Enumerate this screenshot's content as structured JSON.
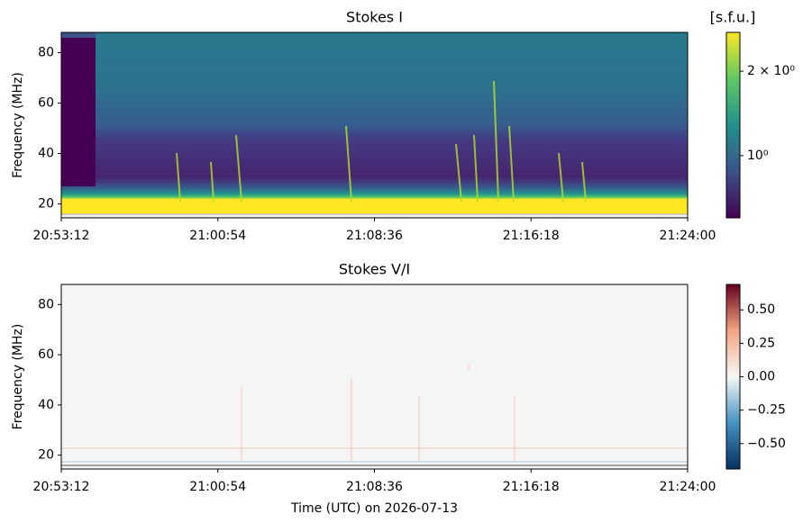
{
  "chart_data": [
    {
      "type": "heatmap",
      "title": "Stokes I",
      "ylabel": "Frequency (MHz)",
      "xlim": [
        "20:53:12",
        "21:24:00"
      ],
      "xticks": [
        "20:53:12",
        "21:00:54",
        "21:08:36",
        "21:16:18",
        "21:24:00"
      ],
      "ylim": [
        14.5,
        88
      ],
      "yticks": [
        20,
        40,
        60,
        80
      ],
      "colorbar": {
        "label": "[s.f.u.]",
        "scale": "log",
        "lim": [
          0.6,
          2.75
        ],
        "ticks": [
          {
            "value": 1,
            "label": "10⁰"
          },
          {
            "value": 2,
            "label": "2 × 10⁰"
          }
        ],
        "colormap": [
          "#440154",
          "#3b528b",
          "#21918c",
          "#5ec962",
          "#fde725"
        ]
      }
    },
    {
      "type": "heatmap",
      "title": "Stokes V/I",
      "ylabel": "Frequency (MHz)",
      "xlabel": "Time (UTC) on 2026-07-13",
      "xlim": [
        "20:53:12",
        "21:24:00"
      ],
      "xticks": [
        "20:53:12",
        "21:00:54",
        "21:08:36",
        "21:16:18",
        "21:24:00"
      ],
      "ylim": [
        14.5,
        88
      ],
      "yticks": [
        20,
        40,
        60,
        80
      ],
      "colorbar": {
        "scale": "linear",
        "lim": [
          -0.69,
          0.69
        ],
        "ticks": [
          {
            "value": 0.5,
            "label": "0.50"
          },
          {
            "value": 0.25,
            "label": "0.25"
          },
          {
            "value": 0,
            "label": "0.00"
          },
          {
            "value": -0.25,
            "label": "−0.25"
          },
          {
            "value": -0.5,
            "label": "−0.50"
          }
        ],
        "colormap": [
          "#053061",
          "#4393c3",
          "#f7f7f7",
          "#f4a582",
          "#67001f"
        ]
      }
    }
  ]
}
